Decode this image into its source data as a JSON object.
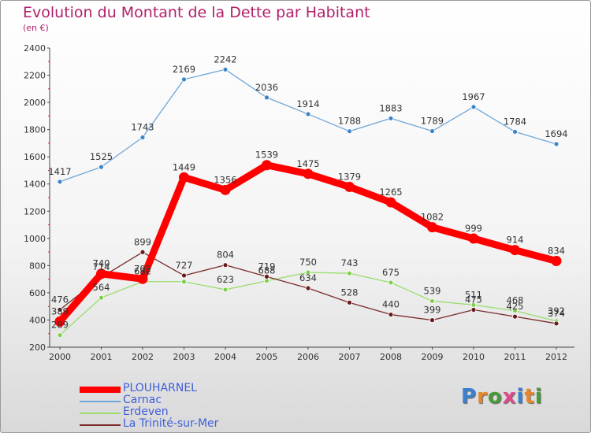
{
  "title": "Evolution du Montant de la Dette par Habitant",
  "subtitle": "(en €)",
  "logo_text": "Proxiti",
  "chart_data": {
    "type": "line",
    "title": "Evolution du Montant de la Dette par Habitant",
    "subtitle": "(en €)",
    "xlabel": "",
    "ylabel": "",
    "categories": [
      "2000",
      "2001",
      "2002",
      "2003",
      "2004",
      "2005",
      "2006",
      "2007",
      "2008",
      "2009",
      "2010",
      "2011",
      "2012"
    ],
    "ylim": [
      200,
      2400
    ],
    "yticks": [
      200,
      400,
      600,
      800,
      1000,
      1200,
      1400,
      1600,
      1800,
      2000,
      2200,
      2400
    ],
    "grid": false,
    "legend_position": "bottom-left",
    "series": [
      {
        "name": "PLOUHARNEL",
        "color": "#ff0000",
        "values": [
          389,
          740,
          702,
          1449,
          1356,
          1539,
          1475,
          1379,
          1265,
          1082,
          999,
          914,
          834
        ]
      },
      {
        "name": "Carnac",
        "color": "#6ea6d8",
        "values": [
          1417,
          1525,
          1743,
          2169,
          2242,
          2036,
          1914,
          1788,
          1883,
          1789,
          1967,
          1784,
          1694
        ]
      },
      {
        "name": "Erdeven",
        "color": "#99dd6e",
        "values": [
          289,
          564,
          682,
          682,
          623,
          688,
          750,
          743,
          675,
          539,
          511,
          468,
          392
        ]
      },
      {
        "name": "La Trinité-sur-Mer",
        "color": "#7a2a2a",
        "values": [
          476,
          714,
          899,
          727,
          804,
          719,
          634,
          528,
          440,
          399,
          475,
          425,
          374
        ]
      }
    ],
    "value_labels": {
      "PLOUHARNEL": [
        "389",
        "740",
        "702",
        "1449",
        "1356",
        "1539",
        "1475",
        "1379",
        "1265",
        "1082",
        "999",
        "914",
        "834"
      ],
      "Carnac": [
        "1417",
        "1525",
        "1743",
        "2169",
        "2242",
        "2036",
        "1914",
        "1788",
        "1883",
        "1789",
        "1967",
        "1784",
        "1694"
      ],
      "Erdeven": [
        "289",
        "564",
        "682",
        "",
        "623",
        "688",
        "750",
        "743",
        "675",
        "539",
        "511",
        "468",
        "392"
      ],
      "La Trinité-sur-Mer": [
        "476",
        "714",
        "899",
        "727",
        "804",
        "719",
        "634",
        "528",
        "440",
        "399",
        "475",
        "425",
        "374"
      ]
    }
  }
}
